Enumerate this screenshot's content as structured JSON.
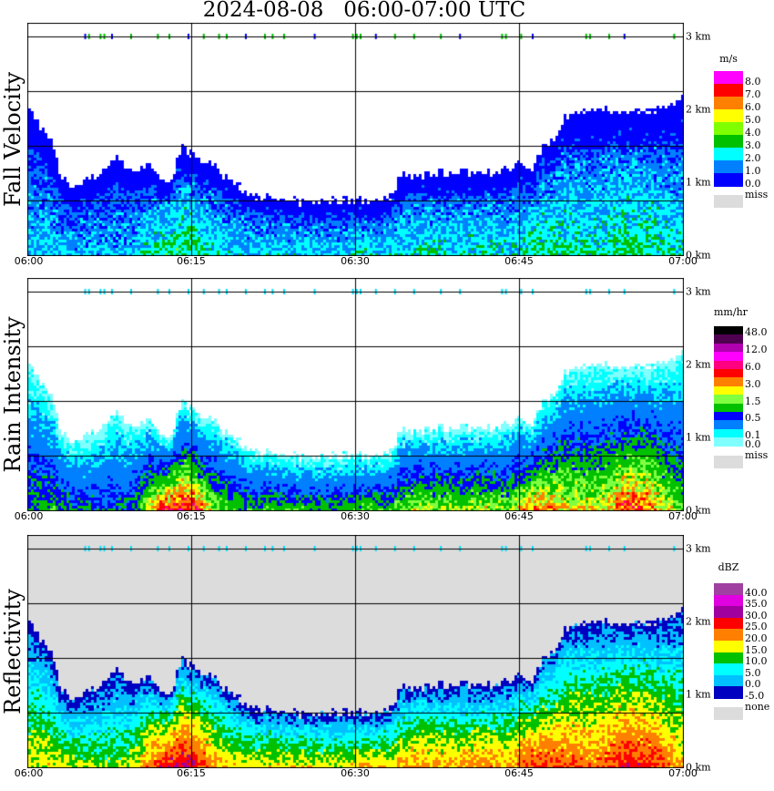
{
  "title": "2024-08-08   06:00-07:00 UTC",
  "x_ticks": [
    "06:00",
    "06:15",
    "06:30",
    "06:45",
    "07:00"
  ],
  "km_ticks": [
    "3 km",
    "2 km",
    "1 km",
    "0 km"
  ],
  "chart_data": {
    "type": "heatmap",
    "title": "2024-08-08   06:00-07:00 UTC",
    "x_range": [
      "06:00",
      "07:00"
    ],
    "y_range_km": [
      0,
      3
    ],
    "grid": true,
    "echo_top_km_per_minute": [
      2.0,
      1.8,
      1.6,
      1.1,
      0.9,
      1.0,
      1.1,
      1.2,
      1.4,
      1.2,
      1.2,
      1.25,
      1.1,
      1.05,
      1.5,
      1.4,
      1.3,
      1.25,
      1.1,
      1.0,
      0.9,
      0.8,
      0.8,
      0.78,
      0.76,
      0.75,
      0.75,
      0.76,
      0.76,
      0.77,
      0.77,
      0.76,
      0.75,
      0.8,
      1.1,
      1.12,
      1.12,
      1.14,
      1.14,
      1.15,
      1.15,
      1.15,
      1.15,
      1.17,
      1.2,
      1.3,
      1.2,
      1.5,
      1.6,
      1.9,
      1.95,
      2.0,
      2.0,
      2.0,
      2.0,
      1.95,
      2.0,
      2.0,
      2.0,
      2.1,
      2.2
    ],
    "surface_dbz_per_minute": [
      17,
      18,
      18,
      17,
      16,
      15,
      15,
      14,
      14,
      15,
      18,
      24,
      28,
      30,
      31,
      30,
      26,
      22,
      20,
      19,
      18,
      18,
      19,
      19,
      19,
      19,
      18,
      18,
      17,
      18,
      19,
      21,
      20,
      19,
      20,
      22,
      23,
      22,
      22,
      21,
      22,
      23,
      23,
      22,
      21,
      25,
      27,
      27,
      26,
      25,
      25,
      24,
      24,
      25,
      28,
      29,
      28,
      27,
      24,
      22,
      20
    ],
    "panels": [
      {
        "name": "Fall Velocity",
        "unit": "m/s",
        "background": "#ffffff",
        "bands": [
          "#ff00ff",
          "#ff0000",
          "#ff8000",
          "#ffff00",
          "#80ff00",
          "#00c000",
          "#00ffff",
          "#0080ff",
          "#0000ff"
        ],
        "labels": [
          {
            "text": "8.0",
            "after_band": 1
          },
          {
            "text": "7.0",
            "after_band": 2
          },
          {
            "text": "6.0",
            "after_band": 3
          },
          {
            "text": "5.0",
            "after_band": 4
          },
          {
            "text": "4.0",
            "after_band": 5
          },
          {
            "text": "3.0",
            "after_band": 6
          },
          {
            "text": "2.0",
            "after_band": 7
          },
          {
            "text": "1.0",
            "after_band": 8
          },
          {
            "text": "0.0",
            "after_band": 9
          }
        ],
        "missing_label": "miss"
      },
      {
        "name": "Rain Intensity",
        "unit": "mm/hr",
        "background": "#ffffff",
        "bands": [
          "#000000",
          "#500050",
          "#b000b0",
          "#ff00ff",
          "#ff0080",
          "#ff0000",
          "#ff8000",
          "#ffff00",
          "#80ff40",
          "#00c000",
          "#0000ff",
          "#0080ff",
          "#00ffff",
          "#80ffff"
        ],
        "labels": [
          {
            "text": "48.0",
            "after_band": 1
          },
          {
            "text": "12.0",
            "after_band": 3
          },
          {
            "text": "6.0",
            "after_band": 5
          },
          {
            "text": "3.0",
            "after_band": 7
          },
          {
            "text": "1.5",
            "after_band": 9
          },
          {
            "text": "0.5",
            "after_band": 11
          },
          {
            "text": "0.1",
            "after_band": 13
          },
          {
            "text": "0.0",
            "after_band": 14
          }
        ],
        "missing_label": "miss"
      },
      {
        "name": "Reflectivity",
        "unit": "dBZ",
        "background": "#dcdcdc",
        "bands": [
          "#a040a0",
          "#e000e0",
          "#a000a0",
          "#ff0000",
          "#ff8000",
          "#ffff00",
          "#00c000",
          "#00ffff",
          "#00c0ff",
          "#0000c0"
        ],
        "labels": [
          {
            "text": "40.0",
            "after_band": 1
          },
          {
            "text": "35.0",
            "after_band": 2
          },
          {
            "text": "30.0",
            "after_band": 3
          },
          {
            "text": "25.0",
            "after_band": 4
          },
          {
            "text": "20.0",
            "after_band": 5
          },
          {
            "text": "15.0",
            "after_band": 6
          },
          {
            "text": "10.0",
            "after_band": 7
          },
          {
            "text": "5.0",
            "after_band": 8
          },
          {
            "text": "0.0",
            "after_band": 9
          },
          {
            "text": "-5.0",
            "after_band": 10
          }
        ],
        "missing_label": "none"
      }
    ]
  }
}
